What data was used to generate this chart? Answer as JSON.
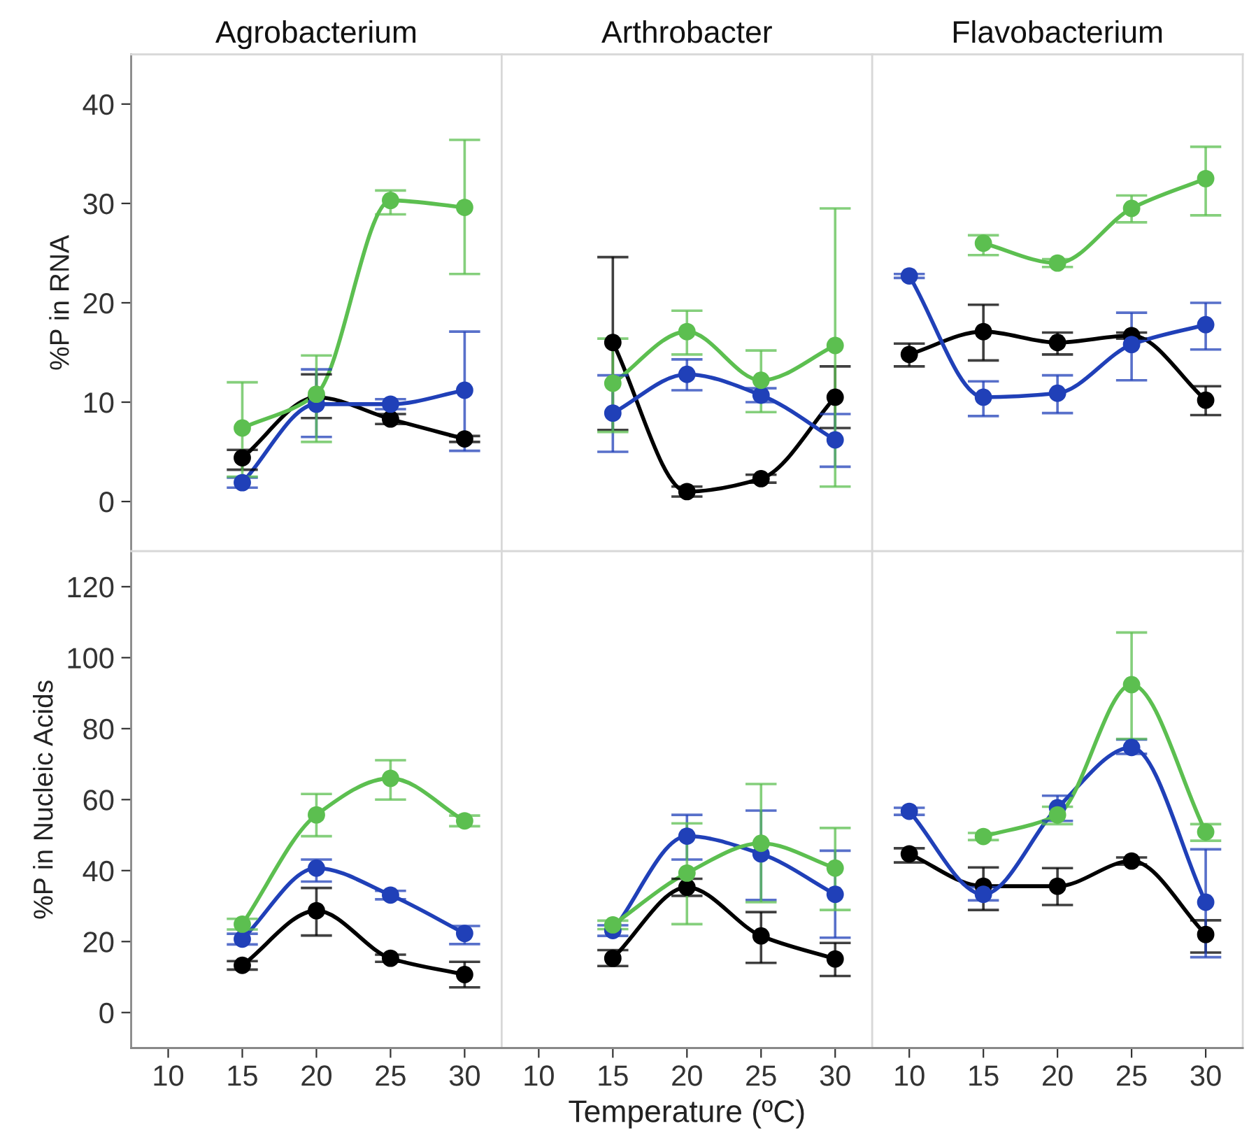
{
  "chart_data": [
    {
      "type": "line",
      "title": "Agrobacterium",
      "ylabel": "%P in RNA",
      "x": [
        15,
        20,
        25,
        30
      ],
      "xlim": [
        7.5,
        32.5
      ],
      "xticks": [
        10,
        15,
        20,
        25,
        30
      ],
      "ylim": [
        -5,
        45
      ],
      "yticks": [
        0,
        10,
        20,
        30,
        40
      ],
      "tick_labels": "y",
      "marker": "circle",
      "line_style": "solid",
      "series": [
        {
          "color": "#000000",
          "values": [
            4.4,
            10.5,
            8.3,
            6.3
          ],
          "errors": [
            [
              3.2,
              5.2
            ],
            [
              8.4,
              12.8
            ],
            0.5,
            0.3
          ]
        },
        {
          "color": "#2040b8",
          "values": [
            1.9,
            9.8,
            9.8,
            11.2
          ],
          "errors": [
            0.5,
            [
              6.5,
              13.3
            ],
            0.5,
            [
              5.1,
              17.1
            ]
          ]
        },
        {
          "color": "#5cbf50",
          "values": [
            7.4,
            10.8,
            30.3,
            29.6
          ],
          "errors": [
            [
              2.5,
              12.0
            ],
            [
              6.0,
              14.7
            ],
            [
              28.9,
              31.3
            ],
            [
              22.9,
              36.4
            ]
          ]
        }
      ]
    },
    {
      "type": "line",
      "title": "Arthrobacter",
      "x": [
        15,
        20,
        25,
        30
      ],
      "xlim": [
        7.5,
        32.5
      ],
      "xticks": [
        10,
        15,
        20,
        25,
        30
      ],
      "ylim": [
        -5,
        45
      ],
      "yticks": [
        0,
        10,
        20,
        30,
        40
      ],
      "tick_labels": false,
      "marker": "circle",
      "line_style": "solid",
      "series": [
        {
          "color": "#000000",
          "values": [
            16.0,
            1.0,
            2.3,
            10.5
          ],
          "errors": [
            [
              7.2,
              24.6
            ],
            0.5,
            0.4,
            [
              7.4,
              13.6
            ]
          ]
        },
        {
          "color": "#2040b8",
          "values": [
            8.9,
            12.8,
            10.7,
            6.2
          ],
          "errors": [
            [
              5.0,
              12.7
            ],
            [
              11.2,
              14.3
            ],
            0.7,
            [
              3.5,
              8.8
            ]
          ]
        },
        {
          "color": "#5cbf50",
          "values": [
            11.9,
            17.1,
            12.2,
            15.7
          ],
          "errors": [
            [
              7.0,
              16.4
            ],
            [
              14.8,
              19.2
            ],
            [
              9.0,
              15.2
            ],
            [
              1.5,
              29.5
            ]
          ]
        }
      ]
    },
    {
      "type": "line",
      "title": "Flavobacterium",
      "x": [
        10,
        15,
        20,
        25,
        30
      ],
      "xlim": [
        7.5,
        32.5
      ],
      "xticks": [
        10,
        15,
        20,
        25,
        30
      ],
      "ylim": [
        -5,
        45
      ],
      "yticks": [
        0,
        10,
        20,
        30,
        40
      ],
      "tick_labels": false,
      "marker": "circle",
      "line_style": "solid",
      "series": [
        {
          "color": "#000000",
          "values": [
            14.8,
            17.1,
            16.0,
            16.7,
            10.2
          ],
          "errors": [
            [
              13.6,
              15.9
            ],
            [
              14.2,
              19.8
            ],
            [
              14.8,
              17.0
            ],
            0.3,
            [
              8.7,
              11.6
            ]
          ]
        },
        {
          "color": "#2040b8",
          "values": [
            22.7,
            10.5,
            10.9,
            15.8,
            17.8
          ],
          "errors": [
            0.2,
            [
              8.6,
              12.1
            ],
            [
              8.9,
              12.7
            ],
            [
              12.2,
              19.0
            ],
            [
              15.3,
              20.0
            ]
          ]
        },
        {
          "color": "#5cbf50",
          "x": [
            15,
            20,
            25,
            30
          ],
          "values": [
            26.0,
            24.0,
            29.5,
            32.5
          ],
          "errors": [
            [
              24.8,
              26.8
            ],
            0.4,
            [
              28.1,
              30.8
            ],
            [
              28.8,
              35.7
            ]
          ]
        }
      ]
    },
    {
      "type": "line",
      "ylabel": "%P in Nucleic Acids",
      "x": [
        15,
        20,
        25,
        30
      ],
      "xlim": [
        7.5,
        32.5
      ],
      "xticks": [
        10,
        15,
        20,
        25,
        30
      ],
      "ylim": [
        -10,
        130
      ],
      "yticks": [
        0,
        20,
        40,
        60,
        80,
        100,
        120
      ],
      "marker": "circle",
      "line_style": "solid",
      "series": [
        {
          "color": "#000000",
          "values": [
            13.3,
            28.7,
            15.3,
            10.7
          ],
          "errors": [
            1.2,
            [
              21.7,
              35.1
            ],
            1.0,
            [
              7.1,
              14.3
            ]
          ]
        },
        {
          "color": "#2040b8",
          "values": [
            20.7,
            40.7,
            33.1,
            22.3
          ],
          "errors": [
            1.5,
            [
              36.9,
              43.1
            ],
            1.2,
            [
              19.3,
              24.4
            ]
          ]
        },
        {
          "color": "#5cbf50",
          "values": [
            24.9,
            55.7,
            66.0,
            54.0
          ],
          "errors": [
            1.5,
            [
              49.7,
              61.6
            ],
            [
              60.0,
              71.1
            ],
            1.5
          ]
        }
      ]
    },
    {
      "type": "line",
      "xlabel": "Temperature (ºC)",
      "x": [
        15,
        20,
        25,
        30
      ],
      "xlim": [
        7.5,
        32.5
      ],
      "xticks": [
        10,
        15,
        20,
        25,
        30
      ],
      "ylim": [
        -10,
        130
      ],
      "yticks": [
        0,
        20,
        40,
        60,
        80,
        100,
        120
      ],
      "tick_labels": "x",
      "marker": "circle",
      "line_style": "solid",
      "series": [
        {
          "color": "#000000",
          "values": [
            15.3,
            35.3,
            21.6,
            15.1
          ],
          "errors": [
            [
              13.1,
              17.6
            ],
            [
              32.9,
              37.7
            ],
            [
              14.0,
              28.3
            ],
            [
              10.3,
              19.6
            ]
          ]
        },
        {
          "color": "#2040b8",
          "values": [
            23.1,
            49.7,
            44.7,
            33.3
          ],
          "errors": [
            1.5,
            [
              43.1,
              55.7
            ],
            [
              31.7,
              56.9
            ],
            [
              21.1,
              45.6
            ]
          ]
        },
        {
          "color": "#5cbf50",
          "values": [
            24.7,
            39.3,
            47.7,
            40.7
          ],
          "errors": [
            1.2,
            [
              24.9,
              53.3
            ],
            [
              31.1,
              64.4
            ],
            [
              28.9,
              52.0
            ]
          ]
        }
      ]
    },
    {
      "type": "line",
      "x": [
        10,
        15,
        20,
        25,
        30
      ],
      "xlim": [
        7.5,
        32.5
      ],
      "xticks": [
        10,
        15,
        20,
        25,
        30
      ],
      "ylim": [
        -10,
        130
      ],
      "yticks": [
        0,
        20,
        40,
        60,
        80,
        100,
        120
      ],
      "tick_labels": "x",
      "marker": "circle",
      "line_style": "solid",
      "series": [
        {
          "color": "#000000",
          "values": [
            44.7,
            35.6,
            35.6,
            42.7,
            22.0
          ],
          "errors": [
            [
              42.3,
              46.3
            ],
            [
              28.9,
              40.9
            ],
            [
              30.3,
              40.7
            ],
            1.0,
            [
              16.9,
              26.0
            ]
          ]
        },
        {
          "color": "#2040b8",
          "values": [
            56.7,
            33.3,
            57.7,
            74.7,
            31.1
          ],
          "errors": [
            1.0,
            [
              31.6,
              35.3
            ],
            [
              54.0,
              61.1
            ],
            [
              72.9,
              76.9
            ],
            [
              15.6,
              46.0
            ]
          ]
        },
        {
          "color": "#5cbf50",
          "x": [
            15,
            20,
            25,
            30
          ],
          "values": [
            49.6,
            55.7,
            92.4,
            50.9
          ],
          "errors": [
            1.0,
            [
              53.1,
              58.0
            ],
            [
              77.1,
              107.1
            ],
            [
              48.4,
              53.1
            ]
          ]
        }
      ]
    }
  ]
}
